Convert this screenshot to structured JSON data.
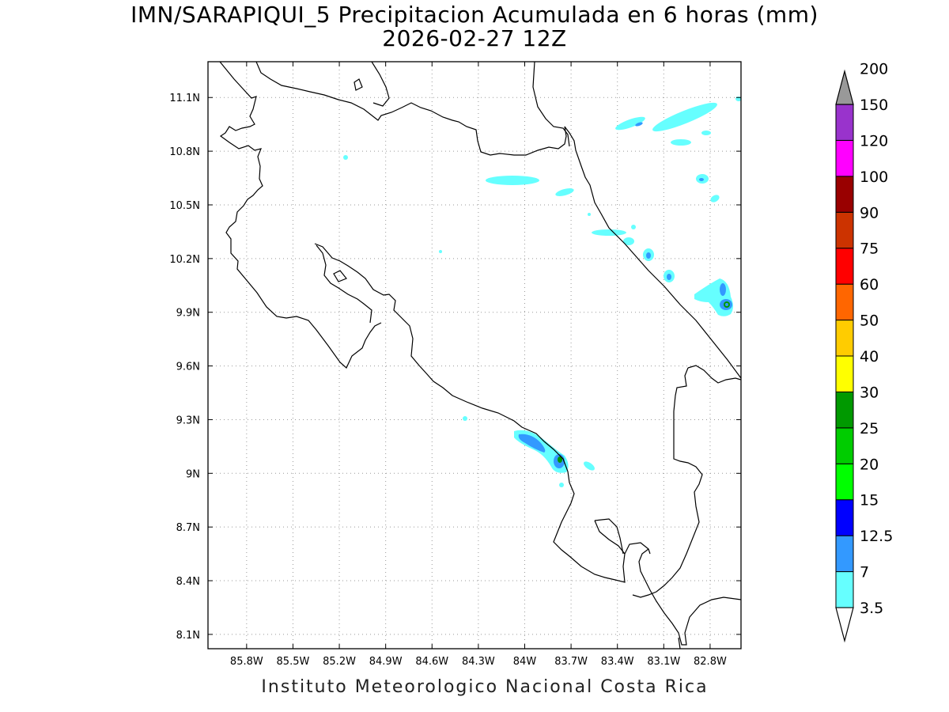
{
  "title": {
    "line1": "IMN/SARAPIQUI_5 Precipitacion Acumulada en 6 horas (mm)",
    "line2": "2026-02-27 12Z"
  },
  "footer": "Instituto Meteorologico Nacional Costa Rica",
  "map": {
    "lon_range": [
      -86.05,
      -82.6
    ],
    "lat_range": [
      8.02,
      11.3
    ],
    "lon_ticks": [
      {
        "value": -85.8,
        "label": "85.8W"
      },
      {
        "value": -85.5,
        "label": "85.5W"
      },
      {
        "value": -85.2,
        "label": "85.2W"
      },
      {
        "value": -84.9,
        "label": "84.9W"
      },
      {
        "value": -84.6,
        "label": "84.6W"
      },
      {
        "value": -84.3,
        "label": "84.3W"
      },
      {
        "value": -84.0,
        "label": "84W"
      },
      {
        "value": -83.7,
        "label": "83.7W"
      },
      {
        "value": -83.4,
        "label": "83.4W"
      },
      {
        "value": -83.1,
        "label": "83.1W"
      },
      {
        "value": -82.8,
        "label": "82.8W"
      }
    ],
    "lat_ticks": [
      {
        "value": 11.1,
        "label": "11.1N"
      },
      {
        "value": 10.8,
        "label": "10.8N"
      },
      {
        "value": 10.5,
        "label": "10.5N"
      },
      {
        "value": 10.2,
        "label": "10.2N"
      },
      {
        "value": 9.9,
        "label": "9.9N"
      },
      {
        "value": 9.6,
        "label": "9.6N"
      },
      {
        "value": 9.3,
        "label": "9.3N"
      },
      {
        "value": 9.0,
        "label": "9N"
      },
      {
        "value": 8.7,
        "label": "8.7N"
      },
      {
        "value": 8.4,
        "label": "8.4N"
      },
      {
        "value": 8.1,
        "label": "8.1N"
      }
    ],
    "grid": true
  },
  "colorbar": {
    "levels": [
      {
        "label": "3.5",
        "color": "#66ffff"
      },
      {
        "label": "7",
        "color": "#3399ff"
      },
      {
        "label": "12.5",
        "color": "#0000ff"
      },
      {
        "label": "15",
        "color": "#00ff00"
      },
      {
        "label": "20",
        "color": "#00cc00"
      },
      {
        "label": "25",
        "color": "#009900"
      },
      {
        "label": "30",
        "color": "#ffff00"
      },
      {
        "label": "40",
        "color": "#ffcc00"
      },
      {
        "label": "50",
        "color": "#ff6600"
      },
      {
        "label": "60",
        "color": "#ff0000"
      },
      {
        "label": "75",
        "color": "#cc3300"
      },
      {
        "label": "90",
        "color": "#990000"
      },
      {
        "label": "100",
        "color": "#ff00ff"
      },
      {
        "label": "120",
        "color": "#9933cc"
      },
      {
        "label": "150",
        "color": "#f2f2f2"
      },
      {
        "label": "200",
        "color": "#999999"
      }
    ]
  }
}
